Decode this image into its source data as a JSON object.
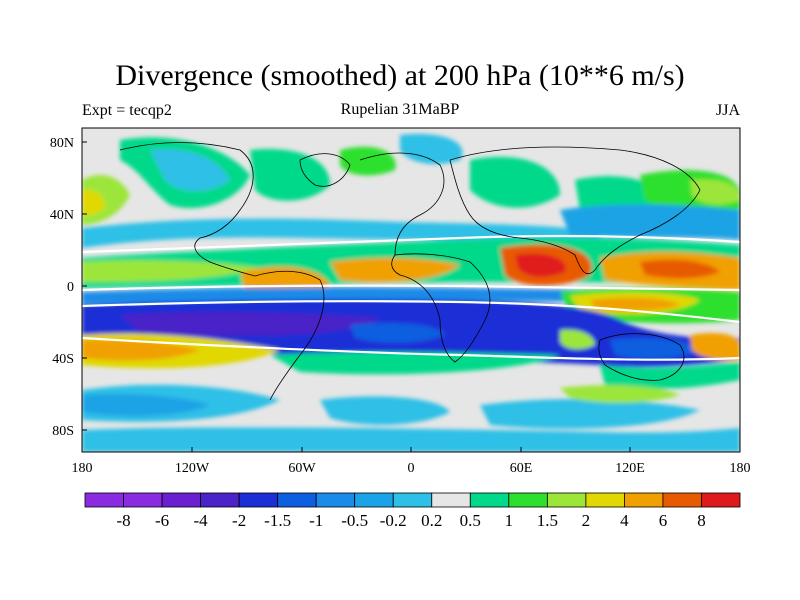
{
  "header": {
    "title": "Divergence (smoothed) at 200 hPa (10**6 m/s)",
    "experiment": "Expt = tecqp2",
    "period": "Rupelian  31MaBP",
    "season": "JJA"
  },
  "map": {
    "lon_ticks": [
      "180",
      "120W",
      "60W",
      "0",
      "60E",
      "120E",
      "180"
    ],
    "lat_ticks": [
      "80N",
      "40N",
      "0",
      "40S",
      "80S"
    ]
  },
  "colorbar": {
    "labels": [
      "-8",
      "-6",
      "-4",
      "-2",
      "-1.5",
      "-1",
      "-0.5",
      "-0.2",
      "0.2",
      "0.5",
      "1",
      "1.5",
      "2",
      "4",
      "6",
      "8"
    ],
    "colors": [
      "#8a2be2",
      "#6a1fd0",
      "#4a24c8",
      "#1c2fd6",
      "#0d5fe0",
      "#1a8be8",
      "#1aa3e6",
      "#2ec0e6",
      "#e6e6e6",
      "#00d98a",
      "#2ee02e",
      "#9ce63a",
      "#e0d800",
      "#f0a000",
      "#e85a00",
      "#e01a1a"
    ]
  }
}
